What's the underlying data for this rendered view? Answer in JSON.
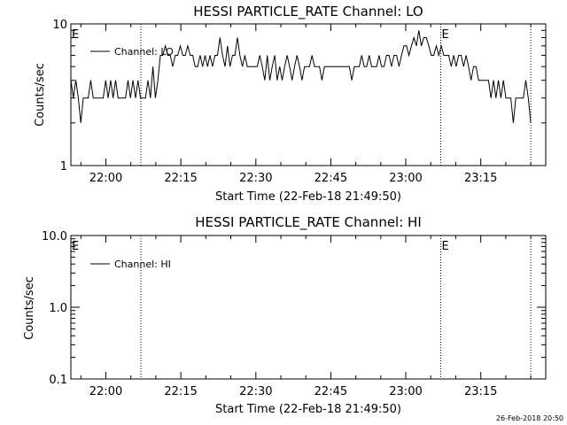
{
  "footer_timestamp": "26-Feb-2018 20:50",
  "chart_data": [
    {
      "type": "line",
      "title": "HESSI PARTICLE_RATE Channel: LO",
      "xlabel": "Start Time (22-Feb-18 21:49:50)",
      "ylabel": "Counts/sec",
      "yscale": "log",
      "ylim": [
        1,
        10
      ],
      "ytick_labels": [
        "1",
        "10"
      ],
      "xlim": [
        "21:53",
        "23:28"
      ],
      "xtick_labels": [
        "22:00",
        "22:15",
        "22:30",
        "22:45",
        "23:00",
        "23:15"
      ],
      "grid": false,
      "legend": {
        "placement": "top-left",
        "entries": [
          "Channel: LO"
        ]
      },
      "annotations": [
        "E",
        "E"
      ],
      "vertical_markers": [
        "22:07",
        "23:07",
        "23:25"
      ],
      "series": [
        {
          "name": "Channel: LO",
          "x_start": "21:53",
          "x_end": "23:25",
          "values": [
            4,
            3,
            4,
            3,
            2,
            3,
            3,
            3,
            4,
            3,
            3,
            3,
            3,
            3,
            4,
            3,
            4,
            3,
            4,
            3,
            3,
            3,
            3,
            4,
            3,
            4,
            3,
            4,
            3,
            3,
            3,
            4,
            3,
            5,
            3,
            4,
            6,
            6,
            7,
            6,
            6,
            5,
            6,
            6,
            7,
            6,
            6,
            7,
            6,
            6,
            5,
            5,
            6,
            5,
            6,
            5,
            6,
            5,
            6,
            6,
            8,
            6,
            5,
            7,
            5,
            6,
            6,
            8,
            6,
            5,
            6,
            5,
            5,
            5,
            5,
            5,
            6,
            5,
            4,
            6,
            4,
            5,
            6,
            4,
            5,
            4,
            5,
            6,
            5,
            4,
            5,
            6,
            5,
            4,
            5,
            5,
            5,
            6,
            5,
            5,
            5,
            4,
            5,
            5,
            5,
            5,
            5,
            5,
            5,
            5,
            5,
            5,
            5,
            4,
            5,
            5,
            5,
            6,
            5,
            5,
            6,
            5,
            5,
            5,
            6,
            5,
            5,
            6,
            6,
            5,
            6,
            6,
            5,
            6,
            7,
            7,
            6,
            7,
            8,
            7,
            9,
            7,
            8,
            8,
            7,
            6,
            6,
            7,
            6,
            7,
            6,
            6,
            6,
            5,
            6,
            5,
            6,
            6,
            5,
            6,
            5,
            4,
            5,
            5,
            4,
            4,
            4,
            4,
            4,
            3,
            4,
            3,
            4,
            3,
            4,
            3,
            3,
            3,
            2,
            3,
            3,
            3,
            3,
            4,
            3,
            2
          ]
        }
      ]
    },
    {
      "type": "line",
      "title": "HESSI PARTICLE_RATE Channel: HI",
      "xlabel": "Start Time (22-Feb-18 21:49:50)",
      "ylabel": "Counts/sec",
      "yscale": "log",
      "ylim": [
        0.1,
        10
      ],
      "ytick_labels": [
        "0.1",
        "1.0",
        "10.0"
      ],
      "xlim": [
        "21:53",
        "23:28"
      ],
      "xtick_labels": [
        "22:00",
        "22:15",
        "22:30",
        "22:45",
        "23:00",
        "23:15"
      ],
      "grid": false,
      "legend": {
        "placement": "top-left",
        "entries": [
          "Channel: HI"
        ]
      },
      "annotations": [
        "E",
        "E"
      ],
      "vertical_markers": [
        "22:07",
        "23:07",
        "23:25"
      ],
      "series": [
        {
          "name": "Channel: HI",
          "values": []
        }
      ]
    }
  ]
}
